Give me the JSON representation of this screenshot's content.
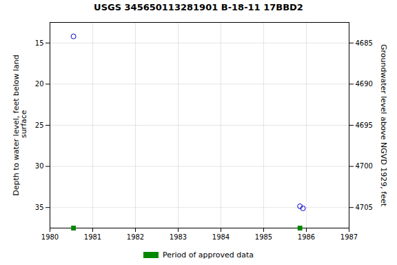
{
  "chart_data": {
    "type": "scatter",
    "title": "USGS 345650113281901 B-18-11 17BBD2",
    "ylabel": "Depth to water level, feet below land\n surface",
    "y2label": "Groundwater level above NGVD 1929, feet",
    "xlim": [
      1980,
      1987
    ],
    "xticks": [
      1980,
      1981,
      1982,
      1983,
      1984,
      1985,
      1986,
      1987
    ],
    "ylim": [
      37.5,
      12.5
    ],
    "yticks": [
      15,
      20,
      25,
      30,
      35
    ],
    "y2lim": [
      4707.5,
      4682.5
    ],
    "y2ticks": [
      4705,
      4700,
      4695,
      4690,
      4685
    ],
    "grid": true,
    "legend": "bottom",
    "series": [
      {
        "x": [
          1980.55,
          1985.85,
          1985.92
        ],
        "values": [
          14.2,
          34.85,
          35.1
        ],
        "color": "#0000cc",
        "marker": "circle"
      },
      {
        "name": "Period of approved data",
        "type": "rug",
        "x": [
          1980.55,
          1985.85
        ],
        "color": "#008800",
        "marker": "square"
      }
    ]
  }
}
